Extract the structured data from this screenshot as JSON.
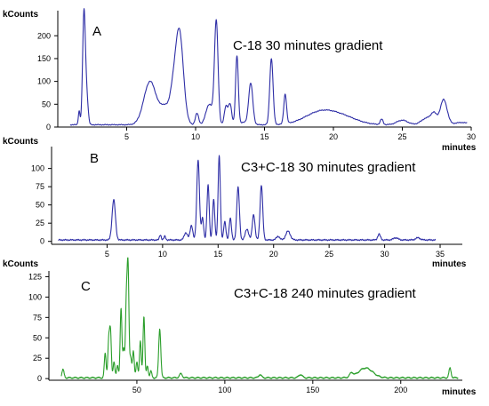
{
  "chart_data": [
    {
      "type": "line",
      "panel_label": "A",
      "title": "C-18 30 minutes gradient",
      "ylabel": "kCounts",
      "xlabel": "minutes",
      "color": "#2e2ea6",
      "xlim": [
        0,
        30
      ],
      "ylim": [
        0,
        255
      ],
      "xticks": [
        5,
        10,
        15,
        20,
        25,
        30
      ],
      "yticks": [
        0,
        50,
        100,
        150,
        200
      ],
      "peaks": [
        {
          "x": 1.55,
          "y": 30,
          "w": 0.06
        },
        {
          "x": 1.9,
          "y": 245,
          "w": 0.1
        },
        {
          "x": 2.1,
          "y": 60,
          "w": 0.1
        },
        {
          "x": 6.7,
          "y": 95,
          "w": 0.45
        },
        {
          "x": 7.8,
          "y": 38,
          "w": 0.35
        },
        {
          "x": 8.8,
          "y": 210,
          "w": 0.3
        },
        {
          "x": 8.3,
          "y": 35,
          "w": 0.2
        },
        {
          "x": 10.1,
          "y": 25,
          "w": 0.12
        },
        {
          "x": 11.0,
          "y": 45,
          "w": 0.25
        },
        {
          "x": 11.5,
          "y": 225,
          "w": 0.13
        },
        {
          "x": 12.2,
          "y": 40,
          "w": 0.12
        },
        {
          "x": 12.5,
          "y": 45,
          "w": 0.12
        },
        {
          "x": 13.0,
          "y": 150,
          "w": 0.1
        },
        {
          "x": 13.5,
          "y": 5,
          "w": 0.3
        },
        {
          "x": 14.0,
          "y": 90,
          "w": 0.15
        },
        {
          "x": 15.5,
          "y": 145,
          "w": 0.12
        },
        {
          "x": 16.5,
          "y": 65,
          "w": 0.1
        },
        {
          "x": 19.2,
          "y": 30,
          "w": 1.2
        },
        {
          "x": 21.0,
          "y": 10,
          "w": 1.0
        },
        {
          "x": 23.5,
          "y": 12,
          "w": 0.1
        },
        {
          "x": 25.0,
          "y": 10,
          "w": 0.4
        },
        {
          "x": 26.8,
          "y": 15,
          "w": 0.4
        },
        {
          "x": 27.3,
          "y": 20,
          "w": 0.2
        },
        {
          "x": 28.0,
          "y": 55,
          "w": 0.25
        },
        {
          "x": 29.3,
          "y": 5,
          "w": 0.5
        }
      ],
      "baseline": 5
    },
    {
      "type": "line",
      "panel_label": "B",
      "title": "C3+C-18 30 minutes gradient",
      "ylabel": "kCounts",
      "xlabel": "minutes",
      "color": "#2e2ea6",
      "xlim": [
        0,
        37
      ],
      "ylim": [
        0,
        130
      ],
      "xticks": [
        5,
        10,
        15,
        20,
        25,
        30,
        35
      ],
      "yticks": [
        0,
        25,
        50,
        75,
        100
      ],
      "peaks": [
        {
          "x": 5.6,
          "y": 55,
          "w": 0.15
        },
        {
          "x": 9.8,
          "y": 7,
          "w": 0.08
        },
        {
          "x": 10.2,
          "y": 5,
          "w": 0.08
        },
        {
          "x": 12.1,
          "y": 10,
          "w": 0.15
        },
        {
          "x": 12.6,
          "y": 20,
          "w": 0.12
        },
        {
          "x": 13.2,
          "y": 110,
          "w": 0.12
        },
        {
          "x": 13.6,
          "y": 30,
          "w": 0.1
        },
        {
          "x": 14.1,
          "y": 75,
          "w": 0.1
        },
        {
          "x": 14.6,
          "y": 55,
          "w": 0.1
        },
        {
          "x": 15.1,
          "y": 115,
          "w": 0.1
        },
        {
          "x": 15.6,
          "y": 25,
          "w": 0.1
        },
        {
          "x": 16.1,
          "y": 30,
          "w": 0.1
        },
        {
          "x": 16.8,
          "y": 72,
          "w": 0.12
        },
        {
          "x": 17.6,
          "y": 15,
          "w": 0.15
        },
        {
          "x": 18.2,
          "y": 35,
          "w": 0.12
        },
        {
          "x": 18.9,
          "y": 75,
          "w": 0.12
        },
        {
          "x": 20.4,
          "y": 5,
          "w": 0.15
        },
        {
          "x": 21.3,
          "y": 12,
          "w": 0.2
        },
        {
          "x": 29.5,
          "y": 8,
          "w": 0.12
        },
        {
          "x": 31.0,
          "y": 3,
          "w": 0.2
        },
        {
          "x": 33.0,
          "y": 3,
          "w": 0.2
        }
      ],
      "baseline": 2,
      "xstart": 0.6,
      "xend": 34.6
    },
    {
      "type": "line",
      "panel_label": "C",
      "title": "C3+C-18 240 minutes gradient",
      "ylabel": "kCounts",
      "xlabel": "minutes",
      "color": "#2a9e2a",
      "xlim": [
        0,
        235
      ],
      "ylim": [
        0,
        132
      ],
      "xticks": [
        50,
        100,
        150,
        200
      ],
      "yticks": [
        0,
        25,
        50,
        75,
        100,
        125
      ],
      "peaks": [
        {
          "x": 8,
          "y": 10,
          "w": 0.6
        },
        {
          "x": 32,
          "y": 30,
          "w": 0.5
        },
        {
          "x": 34,
          "y": 45,
          "w": 0.5
        },
        {
          "x": 35,
          "y": 55,
          "w": 0.5
        },
        {
          "x": 37,
          "y": 20,
          "w": 0.5
        },
        {
          "x": 39,
          "y": 15,
          "w": 0.5
        },
        {
          "x": 41,
          "y": 85,
          "w": 0.5
        },
        {
          "x": 42.5,
          "y": 35,
          "w": 0.5
        },
        {
          "x": 44,
          "y": 90,
          "w": 0.5
        },
        {
          "x": 45,
          "y": 132,
          "w": 0.5
        },
        {
          "x": 46.5,
          "y": 25,
          "w": 0.5
        },
        {
          "x": 48,
          "y": 32,
          "w": 0.5
        },
        {
          "x": 50,
          "y": 20,
          "w": 0.5
        },
        {
          "x": 52,
          "y": 45,
          "w": 0.5
        },
        {
          "x": 54,
          "y": 75,
          "w": 0.5
        },
        {
          "x": 56,
          "y": 15,
          "w": 0.5
        },
        {
          "x": 58,
          "y": 8,
          "w": 0.5
        },
        {
          "x": 63,
          "y": 60,
          "w": 0.6
        },
        {
          "x": 75,
          "y": 5,
          "w": 0.8
        },
        {
          "x": 120,
          "y": 4,
          "w": 0.8
        },
        {
          "x": 143,
          "y": 4,
          "w": 1.0
        },
        {
          "x": 172,
          "y": 5,
          "w": 1.0
        },
        {
          "x": 180,
          "y": 12,
          "w": 4
        },
        {
          "x": 228,
          "y": 12,
          "w": 0.6
        }
      ],
      "baseline": 1
    }
  ]
}
